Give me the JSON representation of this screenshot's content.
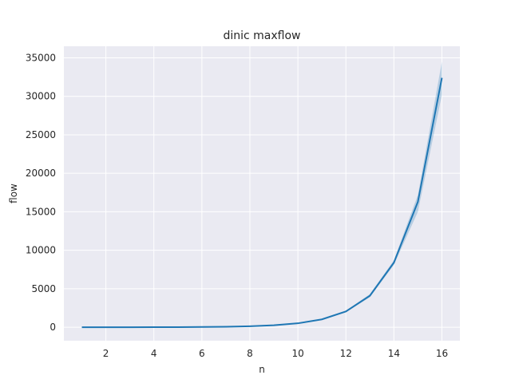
{
  "chart_data": {
    "type": "line",
    "title": "dinic maxflow",
    "xlabel": "n",
    "ylabel": "flow",
    "xlim": [
      0.25,
      16.75
    ],
    "ylim": [
      -1750,
      36500
    ],
    "xticks": [
      2,
      4,
      6,
      8,
      10,
      12,
      14,
      16
    ],
    "yticks": [
      0,
      5000,
      10000,
      15000,
      20000,
      25000,
      30000,
      35000
    ],
    "grid": true,
    "series": [
      {
        "x": [
          1,
          2,
          3,
          4,
          5,
          6,
          7,
          8,
          9,
          10,
          11,
          12,
          13,
          14,
          15,
          16
        ],
        "values": [
          0,
          2,
          4,
          8,
          16,
          32,
          64,
          128,
          256,
          512,
          1024,
          2048,
          4096,
          8400,
          16300,
          32400
        ],
        "ci_low": [
          0,
          2,
          4,
          8,
          16,
          31,
          62,
          124,
          248,
          495,
          990,
          1960,
          3900,
          8100,
          15000,
          30200
        ],
        "ci_high": [
          0,
          2,
          4,
          8,
          16,
          33,
          66,
          132,
          264,
          530,
          1060,
          2140,
          4300,
          8700,
          17200,
          34500
        ]
      }
    ],
    "colors": {
      "line": "#1f77b4",
      "band": "#1f77b4",
      "background": "#eaeaf2",
      "grid": "#ffffff"
    }
  }
}
